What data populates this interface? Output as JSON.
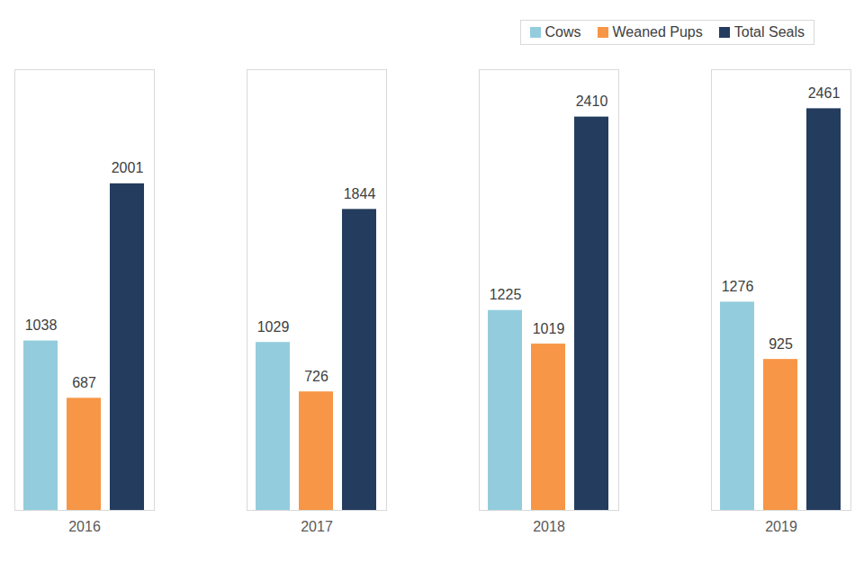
{
  "chart_data": {
    "type": "bar",
    "categories": [
      "2016",
      "2017",
      "2018",
      "2019"
    ],
    "series": [
      {
        "name": "Cows",
        "color": "#93CDDD",
        "values": [
          1038,
          1029,
          1225,
          1276
        ]
      },
      {
        "name": "Weaned Pups",
        "color": "#F79646",
        "values": [
          687,
          726,
          1019,
          925
        ]
      },
      {
        "name": "Total Seals",
        "color": "#243C5E",
        "values": [
          2001,
          1844,
          2410,
          2461
        ]
      }
    ],
    "ylim": [
      0,
      2700
    ],
    "yticks": [],
    "grid": false,
    "legend": "top-right",
    "data_labels": true,
    "tick_labels": "x"
  }
}
